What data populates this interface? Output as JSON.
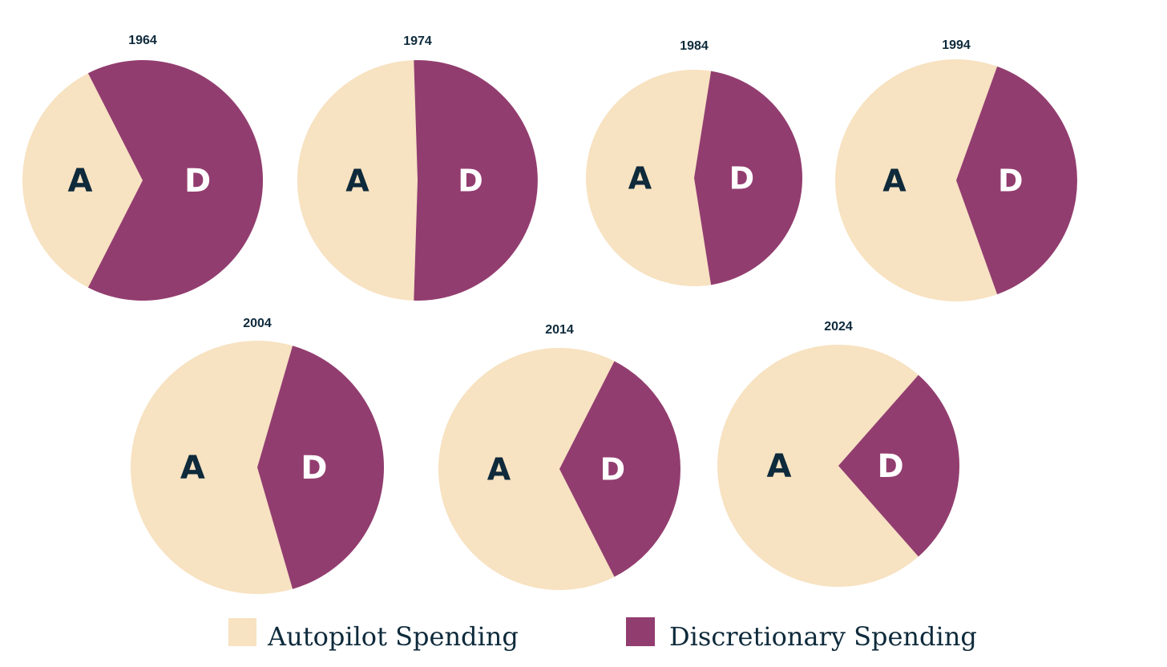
{
  "chart_data": {
    "type": "pie",
    "colors": {
      "autopilot": "#f7e2c1",
      "discretionary": "#923d6f",
      "label_on_autopilot": "#0e2a3b",
      "label_on_discretionary": "#ffffff"
    },
    "legend": {
      "autopilot": "Autopilot Spending",
      "discretionary": "Discretionary Spending"
    },
    "pies": [
      {
        "title": "1964",
        "autopilot_label": "A",
        "discretionary_label": "D",
        "autopilot_share": 0.35,
        "discretionary_share": 0.65
      },
      {
        "title": "1974",
        "autopilot_label": "A",
        "discretionary_label": "D",
        "autopilot_share": 0.49,
        "discretionary_share": 0.51
      },
      {
        "title": "1984",
        "autopilot_label": "A",
        "discretionary_label": "D",
        "autopilot_share": 0.55,
        "discretionary_share": 0.45
      },
      {
        "title": "1994",
        "autopilot_label": "A",
        "discretionary_label": "D",
        "autopilot_share": 0.61,
        "discretionary_share": 0.39
      },
      {
        "title": "2004",
        "autopilot_label": "A",
        "discretionary_label": "D",
        "autopilot_share": 0.59,
        "discretionary_share": 0.41
      },
      {
        "title": "2014",
        "autopilot_label": "A",
        "discretionary_label": "D",
        "autopilot_share": 0.65,
        "discretionary_share": 0.35
      },
      {
        "title": "2024",
        "autopilot_label": "A",
        "discretionary_label": "D",
        "autopilot_share": 0.73,
        "discretionary_share": 0.27
      }
    ]
  }
}
